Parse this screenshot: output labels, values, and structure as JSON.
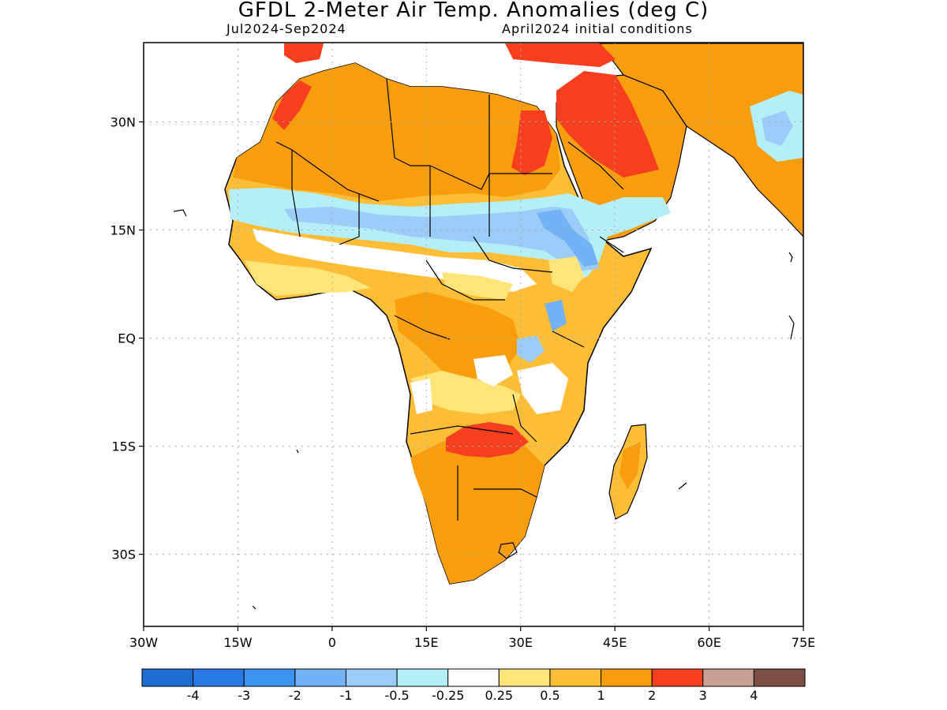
{
  "title": "GFDL 2-Meter Air Temp. Anomalies (deg C)",
  "subtitle_left": "Jul2024-Sep2024",
  "subtitle_right": "April2024 initial conditions",
  "map": {
    "region": "Africa",
    "lon_range": [
      -30,
      75
    ],
    "lat_range": [
      -40,
      41
    ],
    "gridlines": "dotted",
    "x_ticks": [
      {
        "value": -30,
        "label": "30W"
      },
      {
        "value": -15,
        "label": "15W"
      },
      {
        "value": 0,
        "label": "0"
      },
      {
        "value": 15,
        "label": "15E"
      },
      {
        "value": 30,
        "label": "30E"
      },
      {
        "value": 45,
        "label": "45E"
      },
      {
        "value": 60,
        "label": "60E"
      },
      {
        "value": 75,
        "label": "75E"
      }
    ],
    "y_ticks": [
      {
        "value": 30,
        "label": "30N"
      },
      {
        "value": 15,
        "label": "15N"
      },
      {
        "value": 0,
        "label": "EQ"
      },
      {
        "value": -15,
        "label": "15S"
      },
      {
        "value": -30,
        "label": "30S"
      }
    ],
    "colors": {
      "land_outline": "#000000",
      "neutral": "#ffffff",
      "weak_warm": "#ffe47a",
      "warm": "#fdbe37",
      "hot": "#f89d0e",
      "very_hot": "#f63f1e",
      "cool": "#b4eef6",
      "cold": "#9bcdf8",
      "colder": "#73b2f4"
    }
  },
  "colorbar": {
    "colors": [
      "#1e6ed2",
      "#2a7ae6",
      "#3c93f0",
      "#73b2f4",
      "#9bcdf8",
      "#b4eef6",
      "#ffffff",
      "#ffe47a",
      "#fdbe37",
      "#f89d0e",
      "#f63f1e",
      "#c8a094",
      "#7b4f43"
    ],
    "boundary_labels": [
      "-4",
      "-3",
      "-2",
      "-1",
      "-0.5",
      "-0.25",
      "0.25",
      "0.5",
      "1",
      "2",
      "3",
      "4"
    ]
  }
}
